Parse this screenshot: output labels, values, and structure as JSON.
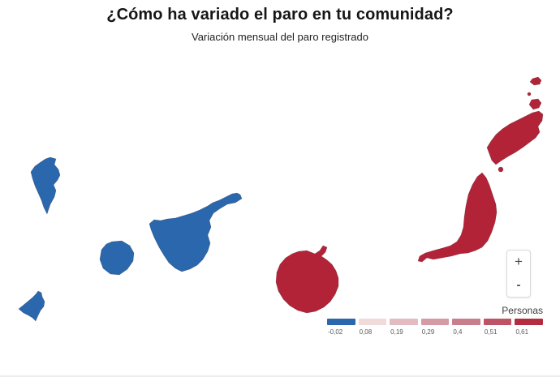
{
  "header": {
    "title": "¿Cómo ha variado el paro en tu comunidad?",
    "subtitle": "Variación mensual del paro registrado"
  },
  "colors": {
    "decrease": "#2a67ad",
    "increase": "#b32338",
    "background": "#ffffff"
  },
  "map": {
    "region": "Islas Canarias",
    "islands": [
      {
        "id": "la-palma",
        "trend": "decrease"
      },
      {
        "id": "el-hierro",
        "trend": "decrease"
      },
      {
        "id": "la-gomera",
        "trend": "decrease"
      },
      {
        "id": "tenerife",
        "trend": "decrease"
      },
      {
        "id": "gran-canaria",
        "trend": "increase"
      },
      {
        "id": "fuerteventura",
        "trend": "increase"
      },
      {
        "id": "lobos",
        "trend": "increase"
      },
      {
        "id": "lanzarote",
        "trend": "increase"
      },
      {
        "id": "la-graciosa",
        "trend": "increase"
      },
      {
        "id": "montana-clara",
        "trend": "increase"
      },
      {
        "id": "alegranza",
        "trend": "increase"
      }
    ]
  },
  "legend": {
    "title": "Personas",
    "stops": [
      {
        "label": "-0,02",
        "color": "#2a67ad"
      },
      {
        "label": "0,08",
        "color": "#f1dada"
      },
      {
        "label": "0,19",
        "color": "#e3bcc1"
      },
      {
        "label": "0,29",
        "color": "#d59ba4"
      },
      {
        "label": "0,4",
        "color": "#c97f8b"
      },
      {
        "label": "0,51",
        "color": "#bd5364"
      },
      {
        "label": "0,61",
        "color": "#b32c40"
      }
    ]
  },
  "zoom_controls": {
    "zoom_in_label": "+",
    "zoom_out_label": "-"
  }
}
